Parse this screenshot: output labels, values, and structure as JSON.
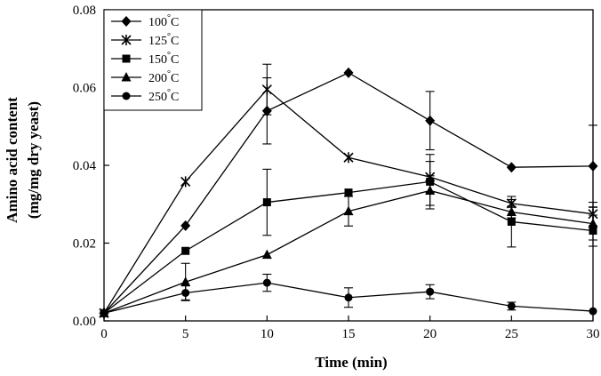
{
  "chart_data": {
    "type": "line",
    "xlabel": "Time (min)",
    "ylabel_lines": [
      "Amino acid content",
      "(mg/mg dry yeast)"
    ],
    "xlim": [
      0,
      30
    ],
    "ylim": [
      0,
      0.08
    ],
    "x_ticks": [
      0,
      5,
      10,
      15,
      20,
      25,
      30
    ],
    "x_tick_labels": [
      "0",
      "5",
      "10",
      "15",
      "20",
      "25",
      "30"
    ],
    "y_ticks": [
      0,
      0.02,
      0.04,
      0.06,
      0.08
    ],
    "y_tick_labels": [
      "0.00",
      "0.02",
      "0.04",
      "0.06",
      "0.08"
    ],
    "grid": false,
    "legend_position": "top-left",
    "legend_unit": "°C",
    "x": [
      0,
      5,
      10,
      15,
      20,
      25,
      30
    ],
    "series": [
      {
        "name": "100",
        "marker": "diamond",
        "values": [
          0.002,
          0.0245,
          0.054,
          0.0638,
          0.0515,
          0.0395,
          0.0398
        ],
        "errors": [
          0,
          0,
          0.0085,
          0,
          0.0075,
          0,
          0.0105
        ]
      },
      {
        "name": "125",
        "marker": "asterisk",
        "values": [
          0.002,
          0.0358,
          0.0595,
          0.042,
          0.037,
          0.0302,
          0.0275
        ],
        "errors": [
          0,
          0,
          0.0065,
          0,
          0.004,
          0.001,
          0.003
        ]
      },
      {
        "name": "150",
        "marker": "square",
        "values": [
          0.002,
          0.018,
          0.0305,
          0.033,
          0.0358,
          0.0255,
          0.0232
        ],
        "errors": [
          0,
          0,
          0.0085,
          0,
          0.007,
          0.0065,
          0.004
        ]
      },
      {
        "name": "200",
        "marker": "triangle",
        "values": [
          0.002,
          0.01,
          0.017,
          0.0282,
          0.0335,
          0.028,
          0.025
        ],
        "errors": [
          0,
          0.0048,
          0,
          0.0038,
          0.0038,
          0.0015,
          0.0042
        ]
      },
      {
        "name": "250",
        "marker": "circle",
        "values": [
          0.002,
          0.0072,
          0.0098,
          0.006,
          0.0075,
          0.0038,
          0.0025
        ],
        "errors": [
          0,
          0.0018,
          0.0022,
          0.0025,
          0.0018,
          0.001,
          0
        ]
      }
    ]
  }
}
